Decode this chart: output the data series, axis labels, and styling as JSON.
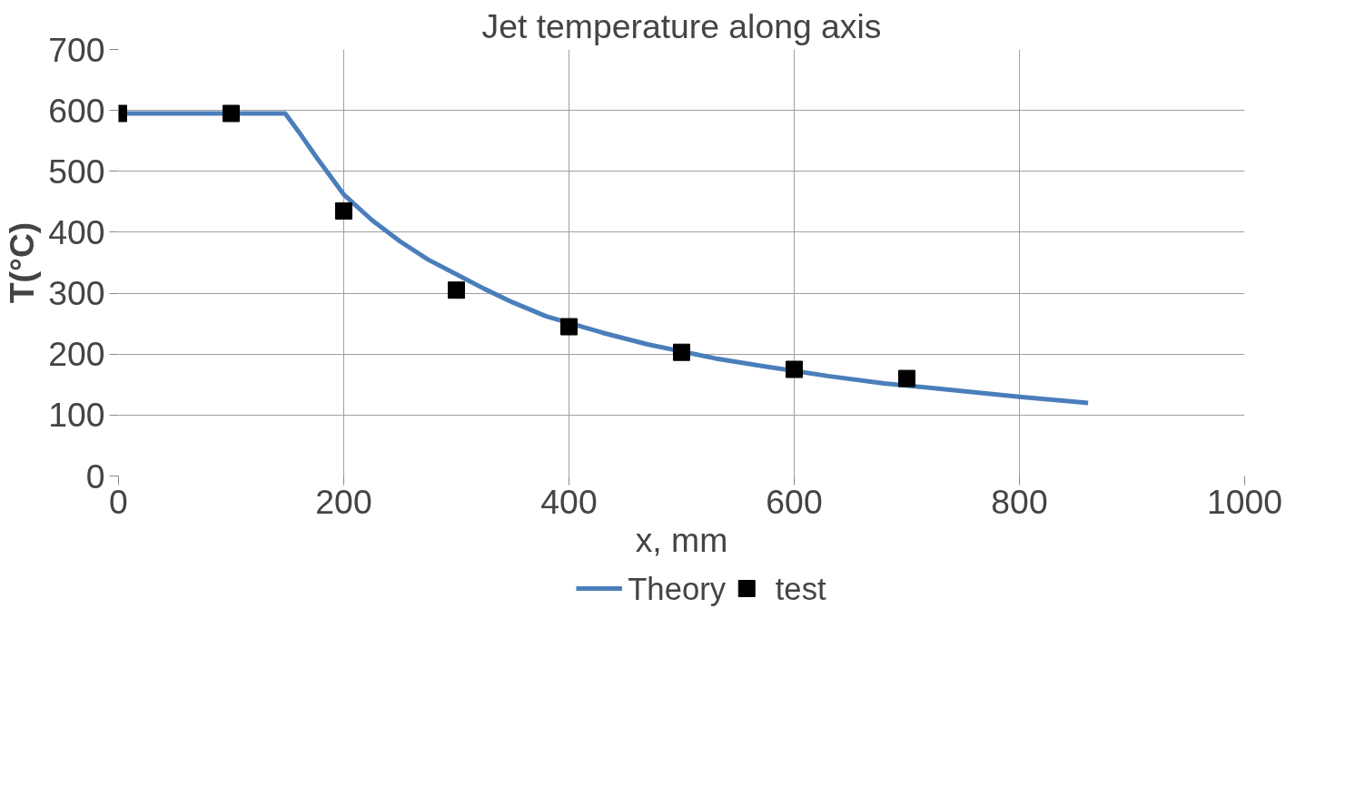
{
  "chart_data": {
    "type": "line",
    "title": "Jet temperature along axis",
    "xlabel": "x, mm",
    "ylabel": "T(°C)",
    "xlim": [
      0,
      1000
    ],
    "ylim": [
      0,
      700
    ],
    "xticks": [
      0,
      200,
      400,
      600,
      800,
      1000
    ],
    "yticks": [
      0,
      100,
      200,
      300,
      400,
      500,
      600,
      700
    ],
    "grid": true,
    "legend": "bottom",
    "series": [
      {
        "name": "Theory",
        "color": "#4a7ebb",
        "marker": "none",
        "line_style": "solid",
        "x": [
          0,
          148,
          160,
          175,
          200,
          225,
          250,
          275,
          325,
          350,
          380,
          430,
          470,
          530,
          570,
          630,
          680,
          730,
          800,
          861
        ],
        "values": [
          595,
          595,
          565,
          525,
          462,
          420,
          385,
          355,
          307,
          285,
          262,
          235,
          216,
          193,
          181,
          164,
          152,
          143,
          130,
          120
        ]
      },
      {
        "name": "test",
        "type": "scatter",
        "color": "#000000",
        "marker": "square",
        "x": [
          0,
          100,
          200,
          300,
          400,
          500,
          600,
          700
        ],
        "values": [
          595,
          595,
          435,
          305,
          245,
          203,
          175,
          160
        ]
      }
    ]
  }
}
